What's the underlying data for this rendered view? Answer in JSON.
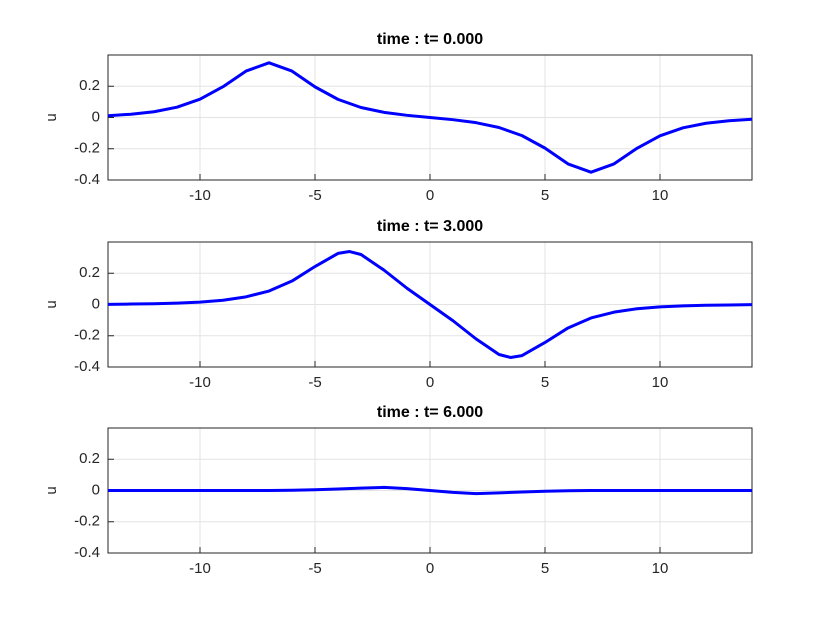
{
  "chart_data": [
    {
      "type": "line",
      "title": "time : t= 0.000",
      "ylabel": "u",
      "color": "#0000ff",
      "grid": true,
      "xlim": [
        -14,
        14
      ],
      "ylim": [
        -0.4,
        0.4
      ],
      "xticks": [
        -10,
        -5,
        0,
        5,
        10
      ],
      "yticks": [
        -0.4,
        -0.2,
        0,
        0.2
      ],
      "x": [
        -14,
        -13,
        -12,
        -11,
        -10,
        -9,
        -8,
        -7,
        -6,
        -5,
        -4,
        -3,
        -2,
        -1,
        0,
        1,
        2,
        3,
        4,
        5,
        6,
        7,
        8,
        9,
        10,
        11,
        12,
        13,
        14
      ],
      "values": [
        0.011,
        0.021,
        0.037,
        0.066,
        0.117,
        0.197,
        0.297,
        0.35,
        0.297,
        0.196,
        0.116,
        0.064,
        0.033,
        0.014,
        0,
        -0.014,
        -0.033,
        -0.064,
        -0.116,
        -0.196,
        -0.297,
        -0.35,
        -0.297,
        -0.197,
        -0.117,
        -0.066,
        -0.037,
        -0.021,
        -0.011
      ]
    },
    {
      "type": "line",
      "title": "time : t= 3.000",
      "ylabel": "u",
      "color": "#0000ff",
      "grid": true,
      "xlim": [
        -14,
        14
      ],
      "ylim": [
        -0.4,
        0.4
      ],
      "xticks": [
        -10,
        -5,
        0,
        5,
        10
      ],
      "yticks": [
        -0.4,
        -0.2,
        0,
        0.2
      ],
      "x": [
        -14,
        -13,
        -12,
        -11,
        -10,
        -9,
        -8,
        -7,
        -6,
        -5,
        -4,
        -3.5,
        -3,
        -2,
        -1,
        0,
        1,
        2,
        3,
        3.5,
        4,
        5,
        6,
        7,
        8,
        9,
        10,
        11,
        12,
        13,
        14
      ],
      "values": [
        0.001,
        0.003,
        0.005,
        0.009,
        0.015,
        0.027,
        0.049,
        0.086,
        0.15,
        0.243,
        0.327,
        0.339,
        0.32,
        0.22,
        0.104,
        0,
        -0.104,
        -0.22,
        -0.32,
        -0.339,
        -0.327,
        -0.243,
        -0.15,
        -0.086,
        -0.049,
        -0.027,
        -0.015,
        -0.009,
        -0.005,
        -0.003,
        -0.001
      ]
    },
    {
      "type": "line",
      "title": "time : t= 6.000",
      "ylabel": "u",
      "color": "#0000ff",
      "grid": true,
      "xlim": [
        -14,
        14
      ],
      "ylim": [
        -0.4,
        0.4
      ],
      "xticks": [
        -10,
        -5,
        0,
        5,
        10
      ],
      "yticks": [
        -0.4,
        -0.2,
        0,
        0.2
      ],
      "x": [
        -14,
        -13,
        -12,
        -11,
        -10,
        -9,
        -8,
        -7,
        -6,
        -5,
        -4,
        -3,
        -2,
        -1,
        0,
        1,
        2,
        3,
        4,
        5,
        6,
        7,
        8,
        9,
        10,
        11,
        12,
        13,
        14
      ],
      "values": [
        0,
        0,
        0,
        0,
        0,
        0,
        0,
        0,
        0.002,
        0.005,
        0.01,
        0.015,
        0.02,
        0.012,
        0,
        -0.012,
        -0.02,
        -0.015,
        -0.01,
        -0.005,
        -0.002,
        0,
        0,
        0,
        0,
        0,
        0,
        0,
        0
      ]
    }
  ]
}
